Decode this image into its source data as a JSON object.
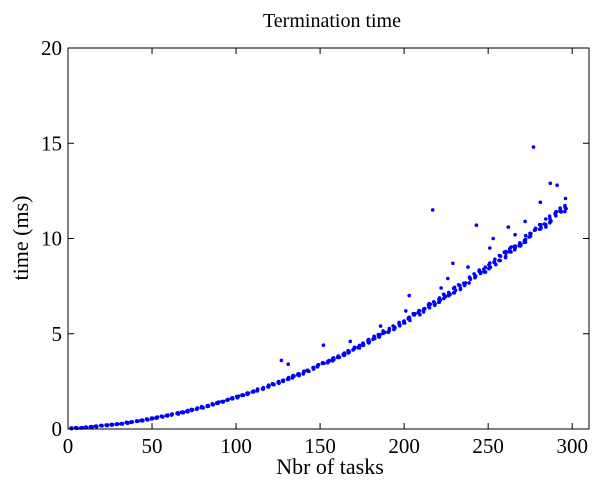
{
  "chart_data": {
    "type": "scatter",
    "title": "Termination time",
    "xlabel": "Nbr of tasks",
    "ylabel": "time (ms)",
    "xlim": [
      0,
      310
    ],
    "ylim": [
      0,
      20
    ],
    "xticks": [
      0,
      50,
      100,
      150,
      200,
      250,
      300
    ],
    "yticks": [
      0,
      5,
      10,
      15,
      20
    ],
    "xtick_labels": [
      "0",
      "50",
      "100",
      "150",
      "200",
      "250",
      "300"
    ],
    "ytick_labels": [
      "0",
      "5",
      "10",
      "15",
      "20"
    ],
    "grid": false,
    "legend": false,
    "marker_color": "#0000ff",
    "trend": {
      "model": "y = a*x + b*x^2",
      "a": 0.0045,
      "b": 0.000115,
      "spread": 0.35,
      "x_start": 2,
      "x_end": 298,
      "x_step": 3,
      "points_per_x": 5
    },
    "outliers": [
      {
        "x": 127,
        "y": 3.6
      },
      {
        "x": 131,
        "y": 3.4
      },
      {
        "x": 152,
        "y": 4.4
      },
      {
        "x": 168,
        "y": 4.6
      },
      {
        "x": 186,
        "y": 5.4
      },
      {
        "x": 201,
        "y": 6.2
      },
      {
        "x": 203,
        "y": 7.0
      },
      {
        "x": 217,
        "y": 11.5
      },
      {
        "x": 222,
        "y": 7.4
      },
      {
        "x": 226,
        "y": 7.9
      },
      {
        "x": 229,
        "y": 8.7
      },
      {
        "x": 238,
        "y": 8.5
      },
      {
        "x": 243,
        "y": 10.7
      },
      {
        "x": 251,
        "y": 9.5
      },
      {
        "x": 253,
        "y": 10.0
      },
      {
        "x": 262,
        "y": 10.6
      },
      {
        "x": 266,
        "y": 10.2
      },
      {
        "x": 272,
        "y": 10.9
      },
      {
        "x": 277,
        "y": 14.8
      },
      {
        "x": 281,
        "y": 11.9
      },
      {
        "x": 287,
        "y": 12.9
      },
      {
        "x": 291,
        "y": 12.8
      },
      {
        "x": 296,
        "y": 12.1
      }
    ]
  }
}
